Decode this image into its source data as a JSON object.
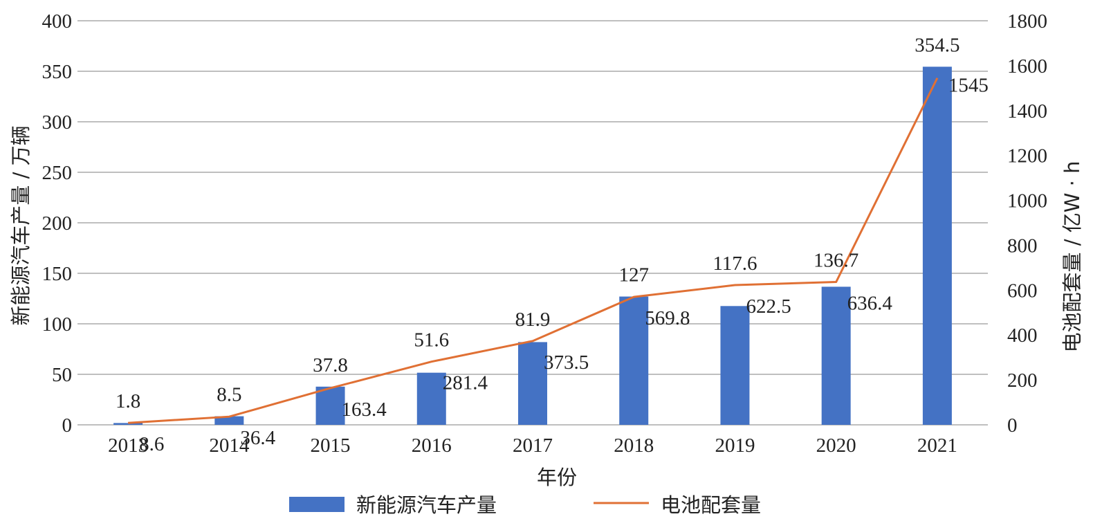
{
  "chart_data": {
    "type": "bar",
    "categories": [
      "2013",
      "2014",
      "2015",
      "2016",
      "2017",
      "2018",
      "2019",
      "2020",
      "2021"
    ],
    "xlabel": "年份",
    "ylabel_left": "新能源汽车产量 / 万辆",
    "ylabel_right": "电池配套量 / 亿W · h",
    "ylim_left": [
      0,
      400
    ],
    "ylim_right": [
      0,
      1800
    ],
    "yticks_left": [
      "0",
      "50",
      "100",
      "150",
      "200",
      "250",
      "300",
      "350",
      "400"
    ],
    "yticks_right": [
      "0",
      "200",
      "400",
      "600",
      "800",
      "1000",
      "1200",
      "1400",
      "1600",
      "1800"
    ],
    "grid": true,
    "legend_position": "bottom",
    "series": [
      {
        "name": "新能源汽车产量",
        "type": "bar",
        "axis": "left",
        "color": "#4472C4",
        "values": [
          1.8,
          8.5,
          37.8,
          51.6,
          81.9,
          127,
          117.6,
          136.7,
          354.5
        ],
        "labels": [
          "1.8",
          "8.5",
          "37.8",
          "51.6",
          "81.9",
          "127",
          "117.6",
          "136.7",
          "354.5"
        ]
      },
      {
        "name": "电池配套量",
        "type": "line",
        "axis": "right",
        "color": "#E07034",
        "values": [
          8.6,
          36.4,
          163.4,
          281.4,
          373.5,
          569.8,
          622.5,
          636.4,
          1545
        ],
        "labels": [
          "8.6",
          "36.4",
          "163.4",
          "281.4",
          "373.5",
          "569.8",
          "622.5",
          "636.4",
          "1545"
        ]
      }
    ]
  }
}
